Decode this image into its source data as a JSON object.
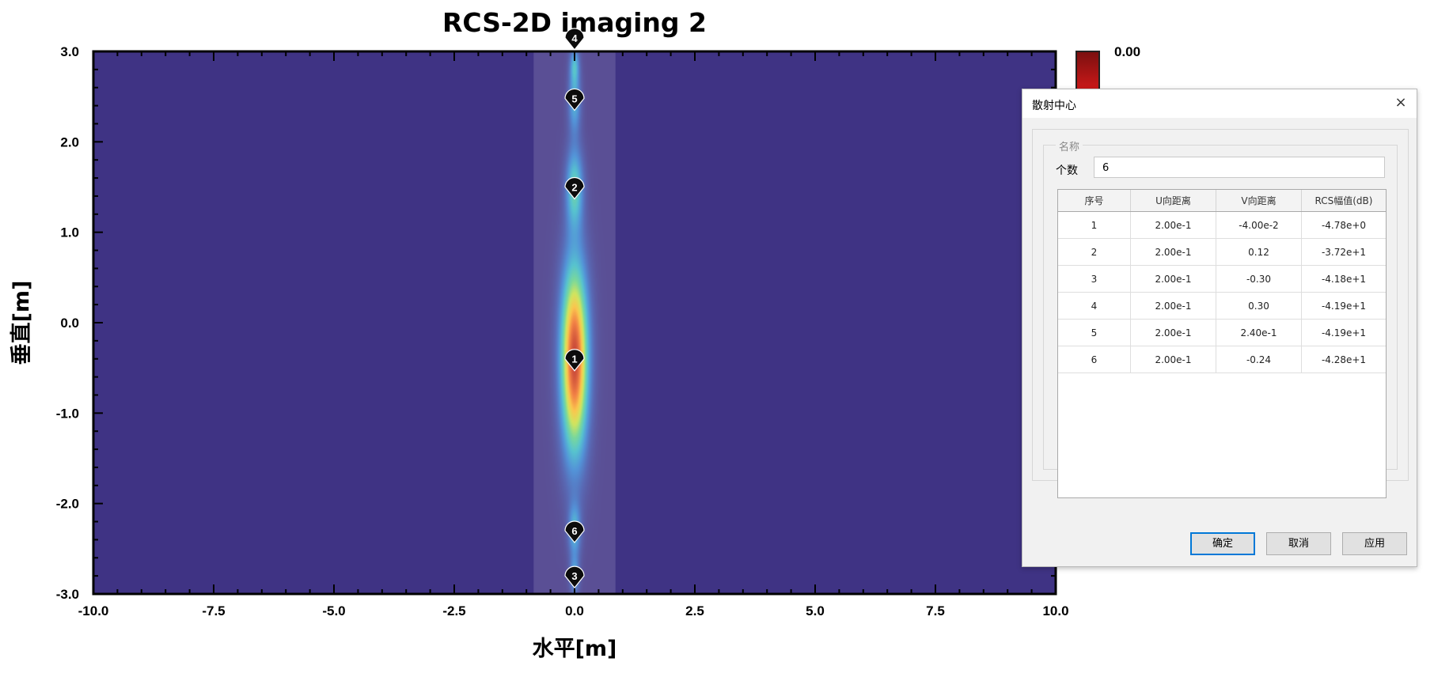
{
  "chart_data": {
    "type": "heatmap",
    "title": "RCS-2D imaging 2",
    "xlabel": "水平[m]",
    "ylabel": "垂直[m]",
    "xlim": [
      -10.0,
      10.0
    ],
    "ylim": [
      -3.0,
      3.0
    ],
    "x_ticks": [
      "-10.0",
      "-7.5",
      "-5.0",
      "-2.5",
      "0.0",
      "2.5",
      "5.0",
      "7.5",
      "10.0"
    ],
    "y_ticks": [
      "3.0",
      "2.0",
      "1.0",
      "0.0",
      "-1.0",
      "-2.0",
      "-3.0"
    ],
    "colorbar_top_label": "0.00",
    "background_color": "#3f3384",
    "highlight_band_x": [
      -0.85,
      0.85
    ],
    "blobs": [
      {
        "x": 0.0,
        "y": -0.4,
        "sx": 0.28,
        "sy": 1.05,
        "amp": 1.0
      },
      {
        "x": 0.0,
        "y": 1.5,
        "sx": 0.18,
        "sy": 0.45,
        "amp": 0.42
      },
      {
        "x": 0.0,
        "y": 2.45,
        "sx": 0.13,
        "sy": 0.35,
        "amp": 0.33
      },
      {
        "x": 0.0,
        "y": 2.85,
        "sx": 0.1,
        "sy": 0.2,
        "amp": 0.3
      },
      {
        "x": 0.0,
        "y": -2.3,
        "sx": 0.13,
        "sy": 0.3,
        "amp": 0.33
      },
      {
        "x": 0.0,
        "y": -2.8,
        "sx": 0.1,
        "sy": 0.2,
        "amp": 0.3
      }
    ],
    "markers": [
      {
        "label": "1",
        "x": 0.0,
        "y": -0.4
      },
      {
        "label": "2",
        "x": 0.0,
        "y": 1.5
      },
      {
        "label": "3",
        "x": 0.0,
        "y": -2.8
      },
      {
        "label": "4",
        "x": 0.0,
        "y": 3.15
      },
      {
        "label": "5",
        "x": 0.0,
        "y": 2.48
      },
      {
        "label": "6",
        "x": 0.0,
        "y": -2.3
      }
    ]
  },
  "dialog": {
    "title": "散射中心",
    "close_glyph": "×",
    "group_label": "名称",
    "count_label": "个数",
    "count_value": "6",
    "columns": [
      "序号",
      "U向距离",
      "V向距离",
      "RCS幅值(dB)"
    ],
    "rows": [
      [
        "1",
        "2.00e-1",
        "-4.00e-2",
        "-4.78e+0"
      ],
      [
        "2",
        "2.00e-1",
        "0.12",
        "-3.72e+1"
      ],
      [
        "3",
        "2.00e-1",
        "-0.30",
        "-4.18e+1"
      ],
      [
        "4",
        "2.00e-1",
        "0.30",
        "-4.19e+1"
      ],
      [
        "5",
        "2.00e-1",
        "2.40e-1",
        "-4.19e+1"
      ],
      [
        "6",
        "2.00e-1",
        "-0.24",
        "-4.28e+1"
      ]
    ],
    "buttons": {
      "ok": "确定",
      "cancel": "取消",
      "apply": "应用"
    }
  }
}
